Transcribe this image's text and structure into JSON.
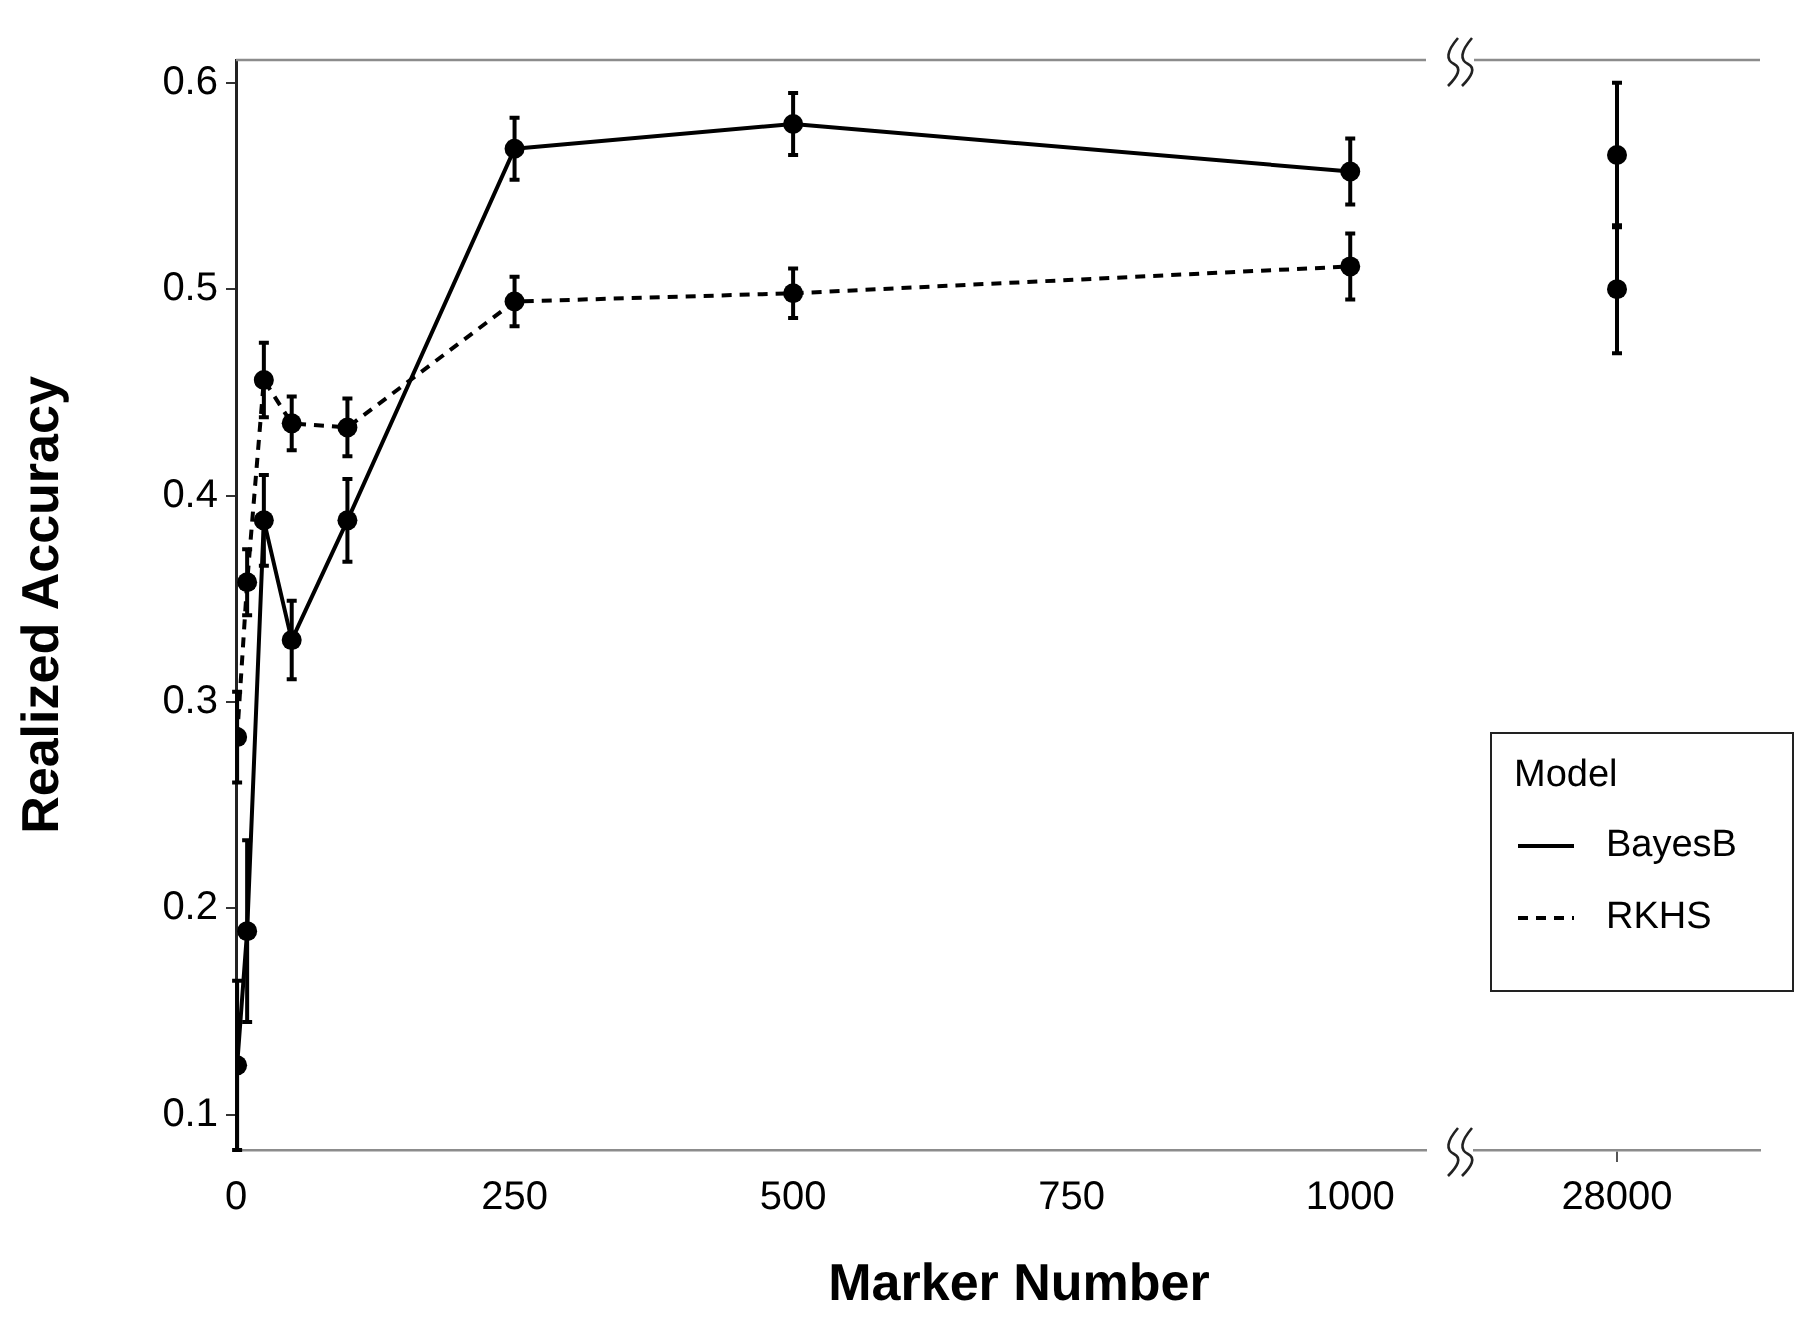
{
  "chart_data": [
    {
      "type": "line",
      "xlabel": "Marker Number",
      "ylabel": "Realized Accuracy",
      "x": [
        1,
        10,
        25,
        50,
        100,
        250,
        500,
        1000
      ],
      "xlim": [
        0,
        1068
      ],
      "xticks": [
        0,
        250,
        500,
        750,
        1000
      ],
      "ylim": [
        0.083,
        0.611
      ],
      "yticks": [
        0.1,
        0.2,
        0.3,
        0.4,
        0.5,
        0.6
      ],
      "marker": "circle",
      "legend": "right",
      "legend_title": "Model",
      "series": [
        {
          "name": "BayesB",
          "color": "#000000",
          "line_style": "solid",
          "values": [
            0.124,
            0.189,
            0.388,
            0.33,
            0.388,
            0.568,
            0.58,
            0.557
          ],
          "errors": [
            0.041,
            0.044,
            0.022,
            0.019,
            0.02,
            0.015,
            0.015,
            0.016
          ]
        },
        {
          "name": "RKHS",
          "color": "#000000",
          "line_style": "dashed",
          "values": [
            0.283,
            0.358,
            0.456,
            0.435,
            0.433,
            0.494,
            0.498,
            0.511
          ],
          "errors": [
            0.022,
            0.016,
            0.018,
            0.013,
            0.014,
            0.012,
            0.012,
            0.016
          ]
        }
      ]
    },
    {
      "type": "line",
      "categories": [
        "28000"
      ],
      "ylim": [
        0.083,
        0.611
      ],
      "tick_labels": "x",
      "marker": "circle",
      "series": [
        {
          "color": "#000000",
          "line_style": "solid",
          "values": [
            0.565
          ],
          "errors": [
            0.035
          ]
        },
        {
          "color": "#000000",
          "line_style": "dashed",
          "values": [
            0.5
          ],
          "errors": [
            0.031
          ]
        }
      ]
    }
  ]
}
